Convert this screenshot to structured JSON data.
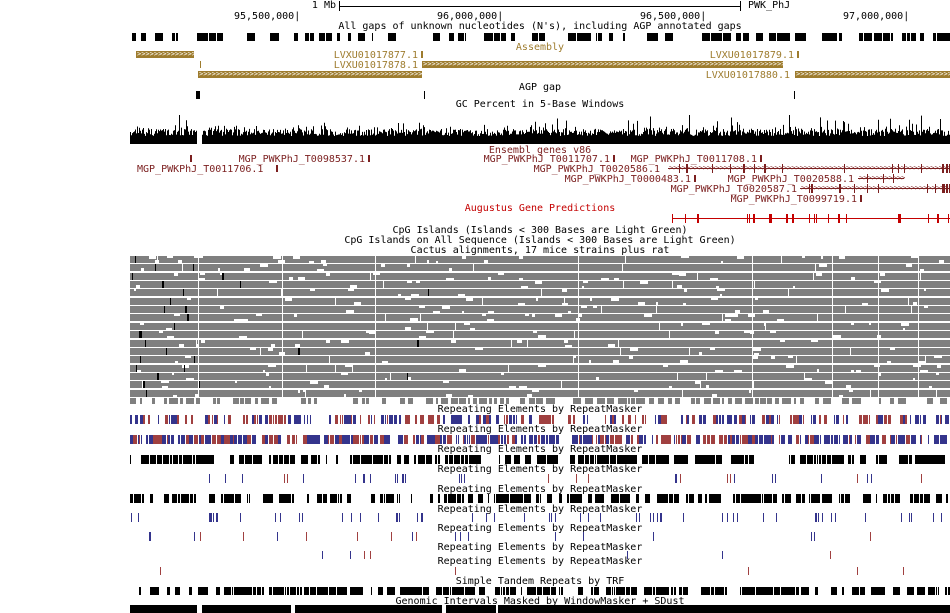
{
  "ruler": {
    "scale": "1 Mb",
    "right_label": "PWK_PhJ",
    "positions": [
      "95,500,000|",
      "96,000,000|",
      "96,500,000|",
      "97,000,000|"
    ]
  },
  "titles": {
    "gaps": "All gaps of unknown nucleotides (N's), including AGP annotated gaps",
    "assembly": "Assembly",
    "agp_gap": "AGP gap",
    "gc": "GC Percent in 5-Base Windows",
    "ensembl": "Ensembl genes v86",
    "augustus": "Augustus Gene Predictions",
    "cpg": "CpG Islands (Islands < 300 Bases are Light Green)",
    "cpg_all": "CpG Islands on All Sequence (Islands < 300 Bases are Light Green)",
    "cactus": "Cactus alignments, 17 mice strains plus rat",
    "repeatmasker": "Repeating Elements by RepeatMasker",
    "trf": "Simple Tandem Repeats by TRF",
    "windowmasker": "Genomic Intervals Masked by WindowMasker + SDust"
  },
  "assembly_contigs": {
    "c1": "LVXU01017877.1",
    "c2": "LVXU01017878.1",
    "c3": "LVXU01017879.1",
    "c4": "LVXU01017880.1"
  },
  "genes": {
    "g1": "MGP_PWKPhJ_T0098537.1",
    "g2": "MGP_PWKPhJ_T0011707.1",
    "g3": "MGP_PWKPhJ_T0011708.1",
    "g4": "MGP_PWKPhJ_T0011706.1",
    "g5": "MGP_PWKPhJ_T0020586.1",
    "g6": "MGP_PWKPhJ_T0000483.1",
    "g7": "MGP_PWKPhJ_T0020588.1",
    "g8": "MGP_PWKPhJ_T0020587.1",
    "g9": "MGP_PWKPhJ_T0099719.1"
  },
  "colors": {
    "assembly_gold": "#9e7c2e",
    "gene_maroon": "#7b1f1f",
    "augustus_red": "#c40000",
    "repeat_navy": "#34348c",
    "repeat_red": "#a04040",
    "cactus_gray": "#7f7f7f",
    "black": "#000000"
  }
}
